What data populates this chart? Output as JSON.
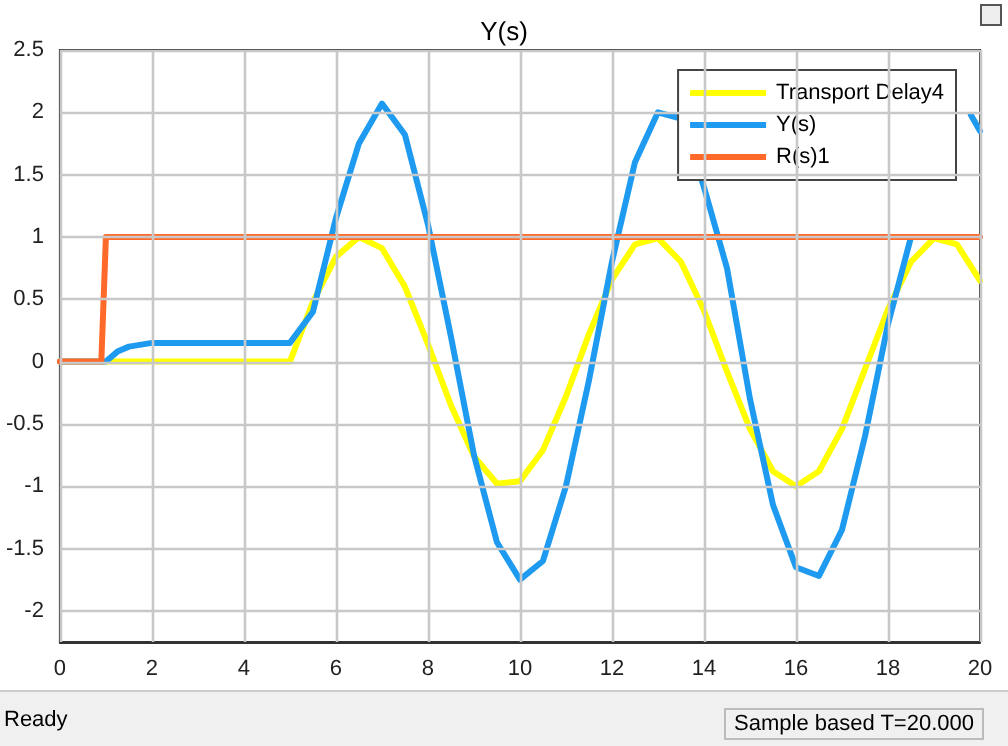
{
  "chart_data": {
    "type": "line",
    "title": "Y(s)",
    "xlim": [
      0,
      20
    ],
    "xticks": [
      0,
      2,
      4,
      6,
      8,
      10,
      12,
      14,
      16,
      18,
      20
    ],
    "ylim": [
      -2.25,
      2.5
    ],
    "yticks": [
      -2,
      -1.5,
      -1,
      -0.5,
      0,
      0.5,
      1,
      1.5,
      2,
      2.5
    ],
    "grid": true,
    "legend": "top right",
    "marker": "none",
    "line_style": "solid",
    "annotations": [
      "Ready",
      "Sample based  T=20.000"
    ],
    "series": [
      {
        "name": "Transport Delay4",
        "color": "#ffff00",
        "x": [
          0,
          5,
          5.5,
          6,
          6.5,
          7,
          7.5,
          8,
          8.5,
          9,
          9.5,
          10,
          10.5,
          11,
          11.5,
          12,
          12.5,
          13,
          13.5,
          14,
          14.5,
          15,
          15.5,
          16,
          16.5,
          17,
          17.5,
          18,
          18.5,
          19,
          19.5,
          20
        ],
        "values": [
          0,
          0,
          0.48,
          0.84,
          1.0,
          0.91,
          0.6,
          0.14,
          -0.35,
          -0.76,
          -0.98,
          -0.96,
          -0.71,
          -0.28,
          0.22,
          0.66,
          0.94,
          0.99,
          0.8,
          0.41,
          -0.08,
          -0.54,
          -0.88,
          -1.0,
          -0.88,
          -0.54,
          -0.06,
          0.42,
          0.8,
          0.99,
          0.94,
          0.65
        ]
      },
      {
        "name": "Y(s)",
        "color": "#1e9bf0",
        "x": [
          0,
          1,
          1.25,
          1.5,
          2,
          5,
          5.5,
          6,
          6.5,
          7,
          7.5,
          8,
          8.5,
          9,
          9.5,
          10,
          10.5,
          11,
          11.5,
          12,
          12.5,
          13,
          13.5,
          14,
          14.5,
          15,
          15.5,
          16,
          16.5,
          17,
          17.5,
          18,
          18.5,
          19,
          19.8,
          20
        ],
        "values": [
          0,
          0,
          0.08,
          0.12,
          0.15,
          0.15,
          0.4,
          1.15,
          1.75,
          2.07,
          1.82,
          1.1,
          0.2,
          -0.75,
          -1.45,
          -1.75,
          -1.6,
          -1.0,
          -0.15,
          0.8,
          1.6,
          2.0,
          1.95,
          1.4,
          0.75,
          -0.3,
          -1.15,
          -1.65,
          -1.72,
          -1.35,
          -0.6,
          0.3,
          1.0,
          null,
          1.98,
          1.85
        ]
      },
      {
        "name": "R(s)1",
        "color": "#ff6a2a",
        "x": [
          0,
          0.9,
          1,
          20
        ],
        "values": [
          0,
          0,
          1,
          1
        ]
      }
    ]
  }
}
